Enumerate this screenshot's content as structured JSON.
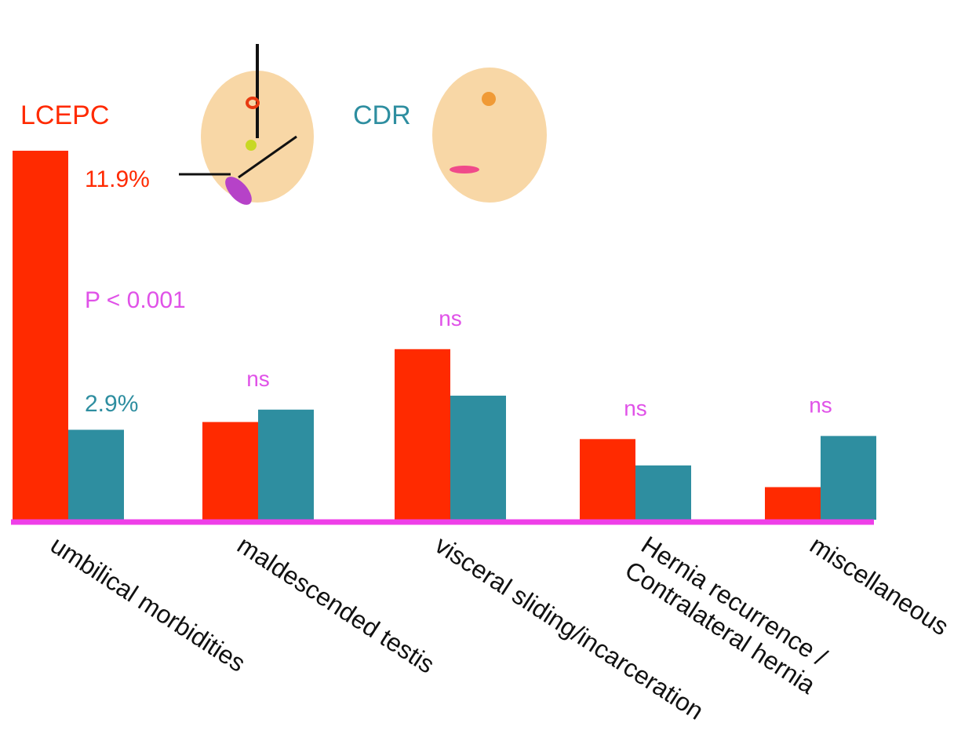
{
  "colors": {
    "lcepc": "#ff2a00",
    "cdr": "#2e8ea0",
    "significance": "#e052e8",
    "axis_line": "#ee3fe8",
    "tick_label": "#111111",
    "oval_fill": "#f8d7a6",
    "background": "#ffffff"
  },
  "icons": {
    "lcepc_diagram": "abdomen-laparoscopic-icon",
    "cdr_diagram": "abdomen-open-repair-icon"
  },
  "chart_data": {
    "type": "bar",
    "title": "",
    "xlabel": "",
    "ylabel": "",
    "grid": false,
    "ylim": [
      0,
      12.6
    ],
    "legend_placement": "top-left",
    "categories": [
      "umbilical morbidities",
      "maldescended testis",
      "visceral sliding/incarceration",
      "Hernia recurrence / Contralateral hernia",
      "miscellaneous"
    ],
    "series": [
      {
        "name": "LCEPC",
        "values": [
          11.9,
          3.15,
          5.5,
          2.6,
          1.05
        ]
      },
      {
        "name": "CDR",
        "values": [
          2.9,
          3.55,
          4.0,
          1.75,
          2.7
        ]
      }
    ],
    "annotations": {
      "lcepc_value_label": "11.9%",
      "cdr_value_label": "2.9%",
      "p_value": "P < 0.001",
      "significance": [
        "",
        "ns",
        "ns",
        "ns",
        "ns"
      ]
    }
  }
}
